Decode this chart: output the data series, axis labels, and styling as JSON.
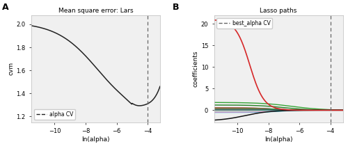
{
  "panel_A_title": "Mean square error: Lars",
  "panel_A_xlabel": "ln(alpha)",
  "panel_A_ylabel": "cvm",
  "panel_A_xlim": [
    -11.5,
    -3.2
  ],
  "panel_A_ylim": [
    1.15,
    2.08
  ],
  "panel_A_vline": -4.0,
  "panel_A_legend_label": "alpha CV",
  "panel_A_yticks": [
    1.2,
    1.4,
    1.6,
    1.8,
    2.0
  ],
  "panel_A_xticks": [
    -10,
    -8,
    -6,
    -4
  ],
  "panel_B_title": "Lasso paths",
  "panel_B_xlabel": "ln(alpha)",
  "panel_B_ylabel": "coefficients",
  "panel_B_xlim": [
    -11.5,
    -3.2
  ],
  "panel_B_ylim": [
    -2.8,
    22
  ],
  "panel_B_vline": -4.0,
  "panel_B_legend_label": "best_alpha CV",
  "panel_B_yticks": [
    0,
    5,
    10,
    15,
    20
  ],
  "panel_B_xticks": [
    -10,
    -8,
    -6,
    -4
  ],
  "bg_color": "#f0f0f0",
  "line_color_dark": "#222222",
  "vline_color": "#666666",
  "spine_color": "#bbbbbb"
}
